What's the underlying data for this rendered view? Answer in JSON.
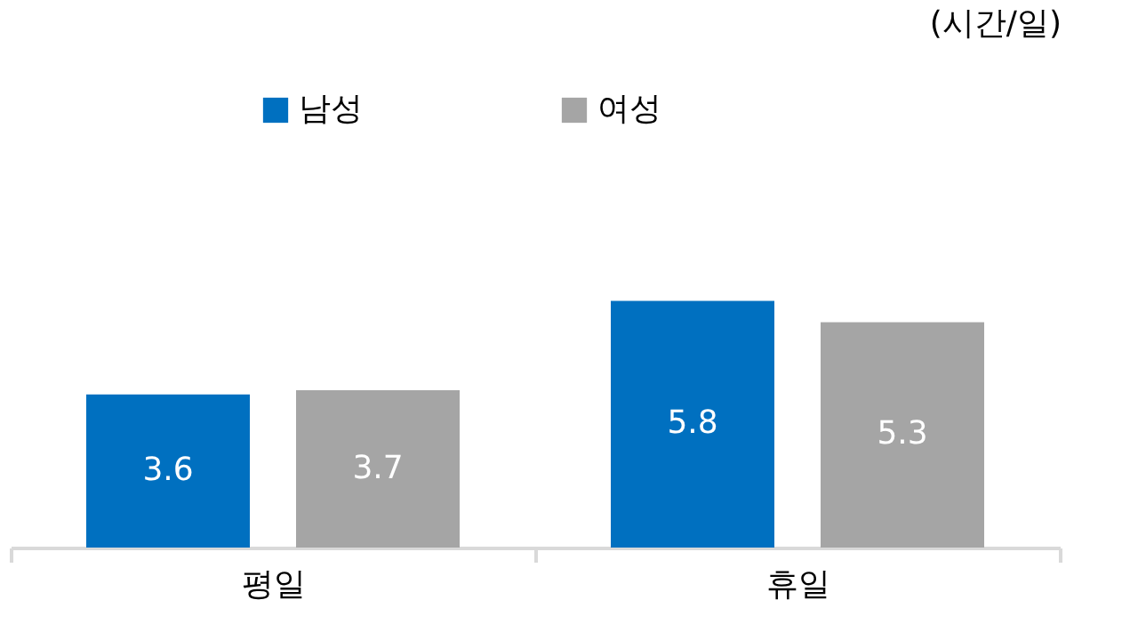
{
  "chart_data": {
    "type": "bar",
    "categories": [
      "평일",
      "휴일"
    ],
    "series": [
      {
        "name": "남성",
        "color": "#0070c0",
        "values": [
          3.6,
          5.8
        ]
      },
      {
        "name": "여성",
        "color": "#a5a5a5",
        "values": [
          3.7,
          5.3
        ]
      }
    ],
    "data_labels": true,
    "legend": "top",
    "annotations": [
      "(시간/일)"
    ]
  }
}
